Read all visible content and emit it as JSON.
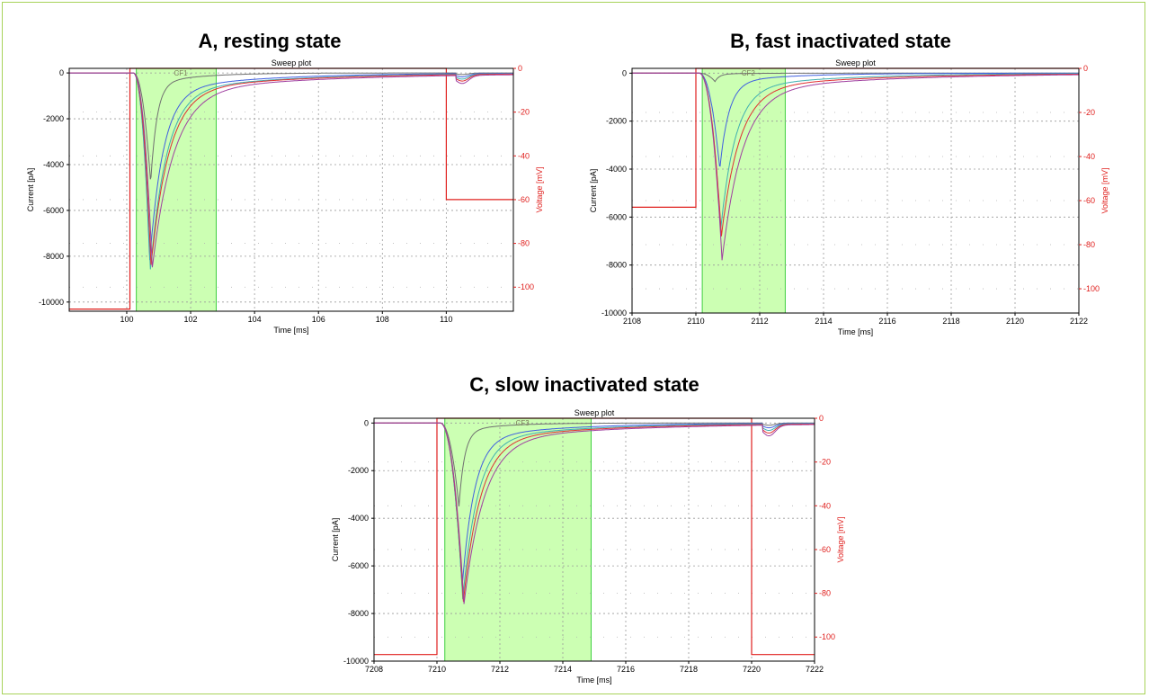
{
  "colors": {
    "frame": "#a8d35a",
    "voltage_axis": "#e0201e",
    "highlight_fill": "#ccffb3",
    "highlight_edge": "#3fcf3f",
    "trace_purple": "#a040a0",
    "trace_blue": "#4060e0",
    "trace_green": "#40b0b0",
    "trace_red": "#e03030",
    "trace_yellow": "#c8c830",
    "trace_gray": "#707070"
  },
  "chart_data": [
    {
      "panel_title": "A, resting state",
      "type": "line",
      "title": "Sweep plot",
      "xlabel": "Time [ms]",
      "ylabel": "Current [pA]",
      "y2label": "Voltage [mV]",
      "xlim": [
        98.2,
        112.1
      ],
      "ylim": [
        -10400,
        200
      ],
      "y2lim": [
        -111,
        0
      ],
      "xticks": [
        100,
        102,
        104,
        106,
        108,
        110
      ],
      "yticks": [
        0,
        -2000,
        -4000,
        -6000,
        -8000,
        -10000
      ],
      "y2ticks": [
        0,
        -20,
        -40,
        -60,
        -80,
        -100
      ],
      "grid": true,
      "cursor_label": "CF1",
      "cursor_range_ms": [
        100.3,
        102.8
      ],
      "voltage_steps": [
        [
          98.2,
          -110
        ],
        [
          100.1,
          -110
        ],
        [
          100.1,
          0
        ],
        [
          110.0,
          0
        ],
        [
          110.0,
          -60
        ],
        [
          112.1,
          -60
        ]
      ],
      "current_peaks": [
        {
          "peak_time": 100.75,
          "peak_pA": -4800,
          "tau_ms": 0.55
        },
        {
          "peak_time": 100.72,
          "peak_pA": -8200,
          "tau_ms": 1.2
        },
        {
          "peak_time": 100.74,
          "peak_pA": -8600,
          "tau_ms": 1.45
        },
        {
          "peak_time": 100.76,
          "peak_pA": -8400,
          "tau_ms": 1.6
        },
        {
          "peak_time": 100.8,
          "peak_pA": -8500,
          "tau_ms": 1.9
        }
      ],
      "tail_event": {
        "time": 110.5,
        "amp_pA": -350
      }
    },
    {
      "panel_title": "B, fast inactivated state",
      "type": "line",
      "title": "Sweep plot",
      "xlabel": "Time [ms]",
      "ylabel": "Current [pA]",
      "y2label": "Voltage [mV]",
      "xlim": [
        2108,
        2122
      ],
      "ylim": [
        -10000,
        200
      ],
      "y2lim": [
        -111,
        0
      ],
      "xticks": [
        2108,
        2110,
        2112,
        2114,
        2116,
        2118,
        2120,
        2122
      ],
      "yticks": [
        0,
        -2000,
        -4000,
        -6000,
        -8000,
        -10000
      ],
      "y2ticks": [
        0,
        -20,
        -40,
        -60,
        -80,
        -100
      ],
      "grid": true,
      "cursor_label": "CF2",
      "cursor_range_ms": [
        2110.2,
        2112.8
      ],
      "voltage_steps": [
        [
          2108,
          -63
        ],
        [
          2110.0,
          -63
        ],
        [
          2110.0,
          0
        ],
        [
          2122,
          0
        ]
      ],
      "current_peaks": [
        {
          "peak_time": 2110.6,
          "peak_pA": -350,
          "tau_ms": 0.4
        },
        {
          "peak_time": 2110.75,
          "peak_pA": -4000,
          "tau_ms": 0.8
        },
        {
          "peak_time": 2110.78,
          "peak_pA": -6500,
          "tau_ms": 1.3
        },
        {
          "peak_time": 2110.8,
          "peak_pA": -6800,
          "tau_ms": 1.6
        },
        {
          "peak_time": 2110.82,
          "peak_pA": -7800,
          "tau_ms": 1.8
        }
      ],
      "tail_event": null
    },
    {
      "panel_title": "C, slow inactivated state",
      "type": "line",
      "title": "Sweep plot",
      "xlabel": "Time [ms]",
      "ylabel": "Current [pA]",
      "y2label": "Voltage [mV]",
      "xlim": [
        7208,
        7222
      ],
      "ylim": [
        -10000,
        200
      ],
      "y2lim": [
        -111,
        0
      ],
      "xticks": [
        7208,
        7210,
        7212,
        7214,
        7216,
        7218,
        7220,
        7222
      ],
      "yticks": [
        0,
        -2000,
        -4000,
        -6000,
        -8000,
        -10000
      ],
      "y2ticks": [
        0,
        -20,
        -40,
        -60,
        -80,
        -100
      ],
      "grid": true,
      "cursor_label": "CF3",
      "cursor_range_ms": [
        7210.25,
        7214.9
      ],
      "voltage_steps": [
        [
          7208,
          -108
        ],
        [
          7210.0,
          -108
        ],
        [
          7210.0,
          0
        ],
        [
          7220.0,
          0
        ],
        [
          7220.0,
          -108
        ],
        [
          7222,
          -108
        ]
      ],
      "current_peaks": [
        {
          "peak_time": 7210.7,
          "peak_pA": -3500,
          "tau_ms": 0.5
        },
        {
          "peak_time": 7210.8,
          "peak_pA": -6900,
          "tau_ms": 1.1
        },
        {
          "peak_time": 7210.82,
          "peak_pA": -7400,
          "tau_ms": 1.35
        },
        {
          "peak_time": 7210.84,
          "peak_pA": -7500,
          "tau_ms": 1.55
        },
        {
          "peak_time": 7210.86,
          "peak_pA": -7600,
          "tau_ms": 1.8
        }
      ],
      "tail_event": {
        "time": 7220.55,
        "amp_pA": -450
      }
    }
  ]
}
